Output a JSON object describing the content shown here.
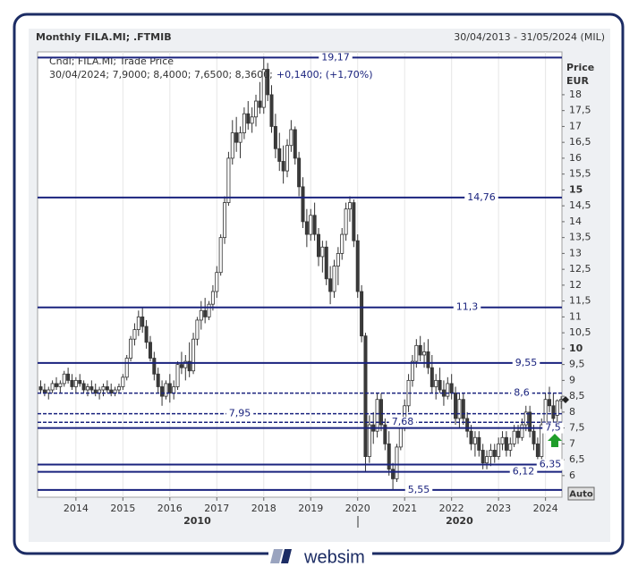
{
  "chart_data": {
    "type": "candlestick",
    "title": "Monthly FILA.MI; .FTMIB",
    "subtitle": "30/04/2013 - 31/05/2024 (MIL)",
    "legend": [
      "Cndl; FILA.MI; Trade Price",
      "30/04/2024; 7,9000; 8,4000; 7,6500; 8,3600;",
      "+0,1400; (+1,70%)"
    ],
    "y_label": "Price",
    "y_unit": "EUR",
    "scale_button": "Auto",
    "up_color": "#ffffff",
    "down_color": "#3a3a3a",
    "level_color": "#1a237e",
    "ylim": [
      5.32,
      19.35
    ],
    "yticks": [
      6,
      {
        "value": 6.5,
        "label": "6,5"
      },
      7,
      {
        "value": 7.5,
        "label": "7,5"
      },
      8,
      {
        "value": 8.5,
        "label": "8,5"
      },
      9,
      {
        "value": 9.5,
        "label": "9,5"
      },
      10,
      {
        "value": 10.5,
        "label": "10,5"
      },
      11,
      {
        "value": 11.5,
        "label": "11,5"
      },
      12,
      {
        "value": 12.5,
        "label": "12,5"
      },
      13,
      {
        "value": 13.5,
        "label": "13,5"
      },
      14,
      {
        "value": 14.5,
        "label": "14,5"
      },
      15,
      {
        "value": 15.5,
        "label": "15,5"
      },
      16,
      {
        "value": 16.5,
        "label": "16,5"
      },
      17,
      {
        "value": 17.5,
        "label": "17,5"
      },
      18
    ],
    "major_yticks": [
      10,
      15
    ],
    "xlim": [
      -0.8,
      133.2
    ],
    "xticks": [
      {
        "value": 9,
        "label": "2014"
      },
      {
        "value": 21,
        "label": "2015"
      },
      {
        "value": 33,
        "label": "2016"
      },
      {
        "value": 45,
        "label": "2017"
      },
      {
        "value": 57,
        "label": "2018"
      },
      {
        "value": 69,
        "label": "2019"
      },
      {
        "value": 81,
        "label": "2020"
      },
      {
        "value": 93,
        "label": "2021"
      },
      {
        "value": 105,
        "label": "2022"
      },
      {
        "value": 117,
        "label": "2023"
      },
      {
        "value": 129,
        "label": "2024"
      }
    ],
    "decade_ticks": [
      {
        "value": 40,
        "label": "2010"
      },
      {
        "value": 107,
        "label": "2020"
      }
    ],
    "grid": "x",
    "levels": [
      {
        "value": 19.17,
        "label": "19,17",
        "style": "solid"
      },
      {
        "value": 14.76,
        "label": "14,76",
        "style": "solid"
      },
      {
        "value": 11.3,
        "label": "11,3",
        "style": "solid"
      },
      {
        "value": 9.55,
        "label": "9,55",
        "style": "solid"
      },
      {
        "value": 8.6,
        "label": "8,6",
        "style": "dashed"
      },
      {
        "value": 7.95,
        "label": "7,95",
        "style": "dashed"
      },
      {
        "value": 7.68,
        "label": "7,68",
        "style": "dashed"
      },
      {
        "value": 7.5,
        "label": "7,5",
        "style": "solid"
      },
      {
        "value": 6.35,
        "label": "6,35",
        "style": "solid"
      },
      {
        "value": 6.12,
        "label": "6,12",
        "style": "solid"
      },
      {
        "value": 5.55,
        "label": "5,55",
        "style": "solid"
      }
    ],
    "candles": [
      [
        8.8,
        9.0,
        8.6,
        8.7
      ],
      [
        8.7,
        8.9,
        8.5,
        8.6
      ],
      [
        8.6,
        8.8,
        8.4,
        8.7
      ],
      [
        8.7,
        9.0,
        8.6,
        8.9
      ],
      [
        8.9,
        9.1,
        8.7,
        8.8
      ],
      [
        8.8,
        9.0,
        8.6,
        8.9
      ],
      [
        8.9,
        9.3,
        8.8,
        9.2
      ],
      [
        9.2,
        9.4,
        8.9,
        9.0
      ],
      [
        9.0,
        9.2,
        8.7,
        8.8
      ],
      [
        8.8,
        9.1,
        8.6,
        9.0
      ],
      [
        9.0,
        9.2,
        8.8,
        8.9
      ],
      [
        8.9,
        9.0,
        8.6,
        8.7
      ],
      [
        8.7,
        8.9,
        8.5,
        8.8
      ],
      [
        8.8,
        9.0,
        8.6,
        8.7
      ],
      [
        8.7,
        8.9,
        8.5,
        8.6
      ],
      [
        8.6,
        8.8,
        8.4,
        8.7
      ],
      [
        8.7,
        8.9,
        8.5,
        8.8
      ],
      [
        8.8,
        9.0,
        8.6,
        8.7
      ],
      [
        8.7,
        8.9,
        8.5,
        8.6
      ],
      [
        8.6,
        8.8,
        8.5,
        8.7
      ],
      [
        8.7,
        8.9,
        8.6,
        8.8
      ],
      [
        8.8,
        9.2,
        8.7,
        9.1
      ],
      [
        9.1,
        9.8,
        9.0,
        9.7
      ],
      [
        9.7,
        10.4,
        9.6,
        10.3
      ],
      [
        10.3,
        10.8,
        10.1,
        10.6
      ],
      [
        10.6,
        11.2,
        10.4,
        11.0
      ],
      [
        11.0,
        11.3,
        10.5,
        10.7
      ],
      [
        10.7,
        10.9,
        10.0,
        10.2
      ],
      [
        10.2,
        10.4,
        9.6,
        9.7
      ],
      [
        9.7,
        9.9,
        9.0,
        9.2
      ],
      [
        9.2,
        9.4,
        8.6,
        8.8
      ],
      [
        8.8,
        9.0,
        8.2,
        8.5
      ],
      [
        8.5,
        9.0,
        8.4,
        8.9
      ],
      [
        8.9,
        9.2,
        8.3,
        8.6
      ],
      [
        8.6,
        9.0,
        8.4,
        8.8
      ],
      [
        8.8,
        9.6,
        8.7,
        9.5
      ],
      [
        9.5,
        9.9,
        9.2,
        9.4
      ],
      [
        9.4,
        9.8,
        9.0,
        9.6
      ],
      [
        9.6,
        10.2,
        9.1,
        9.3
      ],
      [
        9.3,
        10.5,
        9.2,
        10.3
      ],
      [
        10.3,
        11.0,
        10.1,
        10.9
      ],
      [
        10.9,
        11.5,
        10.6,
        11.2
      ],
      [
        11.2,
        11.6,
        10.8,
        11.0
      ],
      [
        11.0,
        11.5,
        10.9,
        11.4
      ],
      [
        11.4,
        12.0,
        11.2,
        11.8
      ],
      [
        11.8,
        12.6,
        11.6,
        12.4
      ],
      [
        12.4,
        13.6,
        12.3,
        13.5
      ],
      [
        13.5,
        14.8,
        13.3,
        14.6
      ],
      [
        14.6,
        16.2,
        14.5,
        16.0
      ],
      [
        16.0,
        17.2,
        15.8,
        16.8
      ],
      [
        16.8,
        17.3,
        16.2,
        16.5
      ],
      [
        16.5,
        17.0,
        16.0,
        16.8
      ],
      [
        16.8,
        17.6,
        16.6,
        17.4
      ],
      [
        17.4,
        17.8,
        16.9,
        17.1
      ],
      [
        17.1,
        17.6,
        16.8,
        17.3
      ],
      [
        17.3,
        18.0,
        17.0,
        17.8
      ],
      [
        17.8,
        18.4,
        17.4,
        17.6
      ],
      [
        17.6,
        19.2,
        17.4,
        18.8
      ],
      [
        18.8,
        19.0,
        17.8,
        18.0
      ],
      [
        18.0,
        18.3,
        16.8,
        17.0
      ],
      [
        17.0,
        17.4,
        16.0,
        16.3
      ],
      [
        16.3,
        16.8,
        15.6,
        15.9
      ],
      [
        15.9,
        16.4,
        15.2,
        15.6
      ],
      [
        15.6,
        16.6,
        15.4,
        16.4
      ],
      [
        16.4,
        17.2,
        16.2,
        16.9
      ],
      [
        16.9,
        17.0,
        15.8,
        16.0
      ],
      [
        16.0,
        16.2,
        14.8,
        15.1
      ],
      [
        15.1,
        15.4,
        13.8,
        14.0
      ],
      [
        14.0,
        14.4,
        13.2,
        13.6
      ],
      [
        13.6,
        14.4,
        13.4,
        14.2
      ],
      [
        14.2,
        14.6,
        13.4,
        13.6
      ],
      [
        13.6,
        13.8,
        12.6,
        12.9
      ],
      [
        12.9,
        13.4,
        12.4,
        13.2
      ],
      [
        13.2,
        13.4,
        12.0,
        12.2
      ],
      [
        12.2,
        12.6,
        11.4,
        11.8
      ],
      [
        11.8,
        12.8,
        11.6,
        12.6
      ],
      [
        12.6,
        13.2,
        12.0,
        13.0
      ],
      [
        13.0,
        13.8,
        12.8,
        13.6
      ],
      [
        13.6,
        14.6,
        13.4,
        14.4
      ],
      [
        14.4,
        14.8,
        14.0,
        14.6
      ],
      [
        14.6,
        14.7,
        13.2,
        13.4
      ],
      [
        13.4,
        13.6,
        11.6,
        11.8
      ],
      [
        11.8,
        12.0,
        10.2,
        10.4
      ],
      [
        10.4,
        10.5,
        6.1,
        6.6
      ],
      [
        6.6,
        7.9,
        6.4,
        7.6
      ],
      [
        7.6,
        8.0,
        7.0,
        7.4
      ],
      [
        7.4,
        8.6,
        7.2,
        8.4
      ],
      [
        8.4,
        8.6,
        7.4,
        7.6
      ],
      [
        7.6,
        7.8,
        6.8,
        7.0
      ],
      [
        7.0,
        7.4,
        6.0,
        6.2
      ],
      [
        6.2,
        6.4,
        5.55,
        5.9
      ],
      [
        5.9,
        7.0,
        5.8,
        6.9
      ],
      [
        6.9,
        7.8,
        6.8,
        7.6
      ],
      [
        7.6,
        8.4,
        7.4,
        8.2
      ],
      [
        8.2,
        9.2,
        8.0,
        9.0
      ],
      [
        9.0,
        9.8,
        8.8,
        9.6
      ],
      [
        9.6,
        10.3,
        9.4,
        10.1
      ],
      [
        10.1,
        10.4,
        9.6,
        9.8
      ],
      [
        9.8,
        10.2,
        9.4,
        9.9
      ],
      [
        9.9,
        10.3,
        9.2,
        9.4
      ],
      [
        9.4,
        9.8,
        8.6,
        8.8
      ],
      [
        8.8,
        9.2,
        8.4,
        9.0
      ],
      [
        9.0,
        9.4,
        8.6,
        8.7
      ],
      [
        8.7,
        9.0,
        8.2,
        8.5
      ],
      [
        8.5,
        9.1,
        8.4,
        8.9
      ],
      [
        8.9,
        9.2,
        8.4,
        8.6
      ],
      [
        8.6,
        8.8,
        7.6,
        7.8
      ],
      [
        7.8,
        8.6,
        7.5,
        8.4
      ],
      [
        8.4,
        8.6,
        7.6,
        7.8
      ],
      [
        7.8,
        8.0,
        7.2,
        7.4
      ],
      [
        7.4,
        7.6,
        6.8,
        7.0
      ],
      [
        7.0,
        7.4,
        6.6,
        7.2
      ],
      [
        7.2,
        7.4,
        6.6,
        6.8
      ],
      [
        6.8,
        7.0,
        6.2,
        6.4
      ],
      [
        6.4,
        6.8,
        6.2,
        6.6
      ],
      [
        6.6,
        7.0,
        6.3,
        6.8
      ],
      [
        6.8,
        7.0,
        6.4,
        6.6
      ],
      [
        6.6,
        7.2,
        6.5,
        7.0
      ],
      [
        7.0,
        7.4,
        6.8,
        7.2
      ],
      [
        7.2,
        7.4,
        6.6,
        6.8
      ],
      [
        6.8,
        7.2,
        6.6,
        7.0
      ],
      [
        7.0,
        7.6,
        6.9,
        7.4
      ],
      [
        7.4,
        7.6,
        7.0,
        7.2
      ],
      [
        7.2,
        7.8,
        7.1,
        7.6
      ],
      [
        7.6,
        8.2,
        7.4,
        8.0
      ],
      [
        8.0,
        8.2,
        7.2,
        7.4
      ],
      [
        7.4,
        7.6,
        6.8,
        7.0
      ],
      [
        7.0,
        7.2,
        6.4,
        6.6
      ],
      [
        6.6,
        7.8,
        6.5,
        7.6
      ],
      [
        7.6,
        8.6,
        7.5,
        8.4
      ],
      [
        8.4,
        8.8,
        8.0,
        8.2
      ],
      [
        8.2,
        8.6,
        7.6,
        7.8
      ],
      [
        7.9,
        8.4,
        7.65,
        8.36
      ],
      [
        8.36,
        8.5,
        8.1,
        8.4
      ]
    ]
  },
  "footer": {
    "brand": "websim"
  }
}
